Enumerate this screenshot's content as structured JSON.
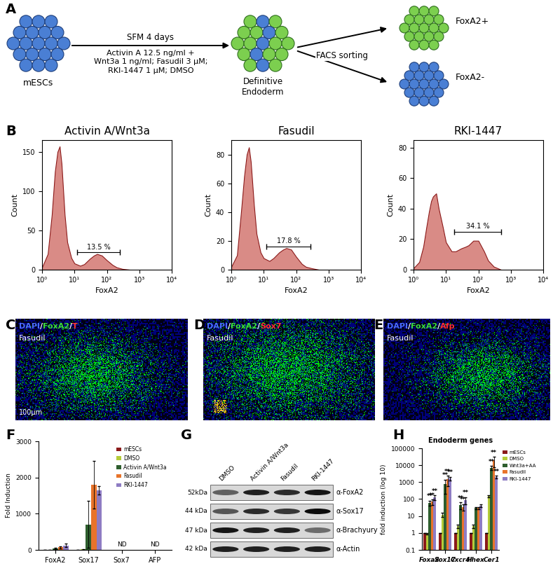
{
  "panel_labels": [
    "A",
    "B",
    "C",
    "D",
    "E",
    "F",
    "G",
    "H"
  ],
  "diagram": {
    "start": "mESCs",
    "conditions_header": "SFM 4 days",
    "conditions": "Activin A 12.5 ng/ml +\nWnt3a 1 ng/ml; Fasudil 3 μM;\nRKI-1447 1 μM; DMSO",
    "middle": "Definitive\nEndoderm",
    "sorting": "FACS sorting",
    "outputs": [
      "FoxA2+",
      "FoxA2-"
    ]
  },
  "chart_data": [
    {
      "type": "area",
      "title": "Activin A/Wnt3a",
      "xlabel": "FoxA2",
      "ylabel": "Count",
      "log": "x",
      "color": "#d98b86",
      "x": [
        1,
        1.5,
        2,
        2.5,
        3,
        3.5,
        4,
        5,
        6,
        8,
        10,
        15,
        20,
        30,
        40,
        50,
        70,
        100,
        150,
        200,
        300,
        500
      ],
      "values": [
        3,
        20,
        70,
        125,
        150,
        157,
        135,
        70,
        35,
        15,
        8,
        5,
        7,
        14,
        18,
        20,
        18,
        12,
        6,
        3,
        1,
        0
      ],
      "xlim": [
        1,
        10000
      ],
      "xticks": [
        {
          "value": 1,
          "label": "10⁰"
        },
        {
          "value": 10,
          "label": "10¹"
        },
        {
          "value": 100,
          "label": "10²"
        },
        {
          "value": 1000,
          "label": "10³"
        },
        {
          "value": 10000,
          "label": "10⁴"
        }
      ],
      "ylim": [
        0,
        165
      ],
      "yticks": [
        0,
        50,
        100,
        150
      ],
      "gate": {
        "range": [
          12,
          250
        ],
        "height": 22,
        "label": "13.5 %"
      }
    },
    {
      "type": "area",
      "title": "Fasudil",
      "xlabel": "FoxA2",
      "ylabel": "Count",
      "log": "x",
      "color": "#d98b86",
      "x": [
        1,
        1.5,
        2,
        2.5,
        3,
        3.5,
        4,
        5,
        6,
        8,
        10,
        15,
        20,
        30,
        40,
        50,
        70,
        100,
        150,
        200,
        300,
        500
      ],
      "values": [
        2,
        10,
        40,
        65,
        80,
        85,
        75,
        45,
        25,
        12,
        8,
        6,
        8,
        12,
        14,
        15,
        14,
        9,
        4,
        2,
        1,
        0
      ],
      "xlim": [
        1,
        10000
      ],
      "xticks": [
        {
          "value": 1,
          "label": "10⁰"
        },
        {
          "value": 10,
          "label": "10¹"
        },
        {
          "value": 100,
          "label": "10²"
        },
        {
          "value": 1000,
          "label": "10³"
        },
        {
          "value": 10000,
          "label": "10⁴"
        }
      ],
      "ylim": [
        0,
        90
      ],
      "yticks": [
        0,
        20,
        40,
        60,
        80
      ],
      "gate": {
        "range": [
          12,
          280
        ],
        "height": 16,
        "label": "17.8 %"
      }
    },
    {
      "type": "area",
      "title": "RKI-1447",
      "xlabel": "FoxA2",
      "ylabel": "Count",
      "log": "x",
      "color": "#d98b86",
      "x": [
        1,
        1.5,
        2,
        2.5,
        3,
        3.5,
        4,
        5,
        6,
        8,
        10,
        15,
        20,
        30,
        40,
        50,
        70,
        100,
        150,
        200,
        300,
        500
      ],
      "values": [
        1,
        5,
        15,
        28,
        38,
        45,
        48,
        50,
        40,
        28,
        18,
        12,
        12,
        14,
        15,
        16,
        19,
        19,
        12,
        6,
        2,
        0
      ],
      "xlim": [
        1,
        10000
      ],
      "xticks": [
        {
          "value": 1,
          "label": "10⁰"
        },
        {
          "value": 10,
          "label": "10¹"
        },
        {
          "value": 100,
          "label": "10²"
        },
        {
          "value": 1000,
          "label": "10³"
        },
        {
          "value": 10000,
          "label": "10⁴"
        }
      ],
      "ylim": [
        0,
        85
      ],
      "yticks": [
        0,
        20,
        40,
        60,
        80
      ],
      "gate": {
        "range": [
          18,
          500
        ],
        "height": 25,
        "label": "34.1 %"
      }
    },
    {
      "type": "bar",
      "ylabel": "Fold Induction",
      "legend": "upper right",
      "categories": [
        "FoxA2",
        "Sox17",
        "Sox7",
        "AFP"
      ],
      "series": [
        {
          "name": "mESCs",
          "color": "#8b1a1a",
          "values": [
            1,
            1,
            null,
            null
          ],
          "errors": [
            0,
            0,
            null,
            null
          ]
        },
        {
          "name": "DMSO",
          "color": "#b5cc3a",
          "values": [
            1,
            10,
            null,
            null
          ],
          "errors": [
            0,
            3,
            null,
            null
          ]
        },
        {
          "name": "Activin A/Wnt3a",
          "color": "#2e5e2e",
          "values": [
            40,
            700,
            null,
            null
          ],
          "errors": [
            20,
            650,
            null,
            null
          ]
        },
        {
          "name": "Fasudil",
          "color": "#e8732a",
          "values": [
            70,
            1800,
            null,
            null
          ],
          "errors": [
            30,
            650,
            null,
            null
          ]
        },
        {
          "name": "RKI-1447",
          "color": "#8e7cc3",
          "values": [
            120,
            1650,
            null,
            null
          ],
          "errors": [
            50,
            120,
            null,
            null
          ]
        }
      ],
      "ylim": [
        0,
        3000
      ],
      "yticks": [
        0,
        1000,
        2000,
        3000
      ],
      "annotations": [
        {
          "category": "Sox7",
          "text": "ND"
        },
        {
          "category": "AFP",
          "text": "ND"
        }
      ]
    },
    {
      "type": "bar",
      "title": "Endoderm genes",
      "ylabel": "fold induction (log 10)",
      "log": "y",
      "legend": "right",
      "categories": [
        "Foxa2",
        "Sox17",
        "Cxcr4",
        "Hhex",
        "Cer1"
      ],
      "series": [
        {
          "name": "mESCs",
          "color": "#8b1a1a",
          "values": [
            1,
            1,
            1,
            1,
            1
          ],
          "errors": [
            0,
            0,
            0,
            0,
            0
          ],
          "significance": [
            null,
            null,
            null,
            null,
            null
          ]
        },
        {
          "name": "DMSO",
          "color": "#b5cc3a",
          "values": [
            0.9,
            12,
            2.5,
            2.5,
            150
          ],
          "errors": [
            0.1,
            3,
            0.5,
            0.5,
            20
          ],
          "significance": [
            null,
            null,
            null,
            null,
            null
          ]
        },
        {
          "name": "Wnt3a+AA",
          "color": "#2e5e2e",
          "values": [
            60,
            800,
            45,
            30,
            7000
          ],
          "errors": [
            20,
            600,
            20,
            5,
            2000
          ],
          "significance": [
            "**",
            "**",
            "**",
            null,
            "**"
          ]
        },
        {
          "name": "Fasudil",
          "color": "#e8732a",
          "values": [
            70,
            1500,
            35,
            30,
            20000
          ],
          "errors": [
            25,
            900,
            15,
            5,
            12000
          ],
          "significance": [
            "**",
            "**",
            "**",
            null,
            "**"
          ]
        },
        {
          "name": "RKI-1447",
          "color": "#8e7cc3",
          "values": [
            130,
            1700,
            90,
            40,
            2000
          ],
          "errors": [
            40,
            400,
            40,
            8,
            400
          ],
          "significance": [
            "**",
            "**",
            "**",
            null,
            "**"
          ]
        }
      ],
      "ylim": [
        0.1,
        100000
      ],
      "yticks": [
        0.1,
        1,
        10,
        100,
        1000,
        10000,
        100000
      ]
    }
  ],
  "images": [
    {
      "stains": [
        {
          "text": "DAPI",
          "color": "#4a6cff"
        },
        {
          "text": "FoxA2",
          "color": "#3adb3a"
        },
        {
          "text": "T",
          "color": "#ff3030"
        }
      ],
      "separator": "/",
      "condition": "Fasudil",
      "scale": "100μm"
    },
    {
      "stains": [
        {
          "text": "DAPI",
          "color": "#4a6cff"
        },
        {
          "text": "FoxA2",
          "color": "#3adb3a"
        },
        {
          "text": "Sox7",
          "color": "#ff3030"
        }
      ],
      "separator": "/",
      "condition": "Fasudil"
    },
    {
      "stains": [
        {
          "text": "DAPI",
          "color": "#4a6cff"
        },
        {
          "text": "FoxA2",
          "color": "#3adb3a"
        },
        {
          "text": "Afp",
          "color": "#ff3030"
        }
      ],
      "separator": "/",
      "condition": "Fasudil"
    }
  ],
  "blot": {
    "columns": [
      "DMSO",
      "Activin A/Wnt3a",
      "Fasudil",
      "RKI-1447"
    ],
    "rows": [
      {
        "size": "52kDa",
        "antibody": "α-FoxA2",
        "band_intensity": [
          0.55,
          0.85,
          0.8,
          0.9
        ]
      },
      {
        "size": "44 kDa",
        "antibody": "α-Sox17",
        "band_intensity": [
          0.6,
          0.8,
          0.75,
          0.95
        ]
      },
      {
        "size": "47 kDa",
        "antibody": "α-Brachyury",
        "band_intensity": [
          0.9,
          0.85,
          0.85,
          0.5
        ]
      },
      {
        "size": "42 kDa",
        "antibody": "α-Actin",
        "band_intensity": [
          0.85,
          0.85,
          0.85,
          0.85
        ]
      }
    ]
  }
}
